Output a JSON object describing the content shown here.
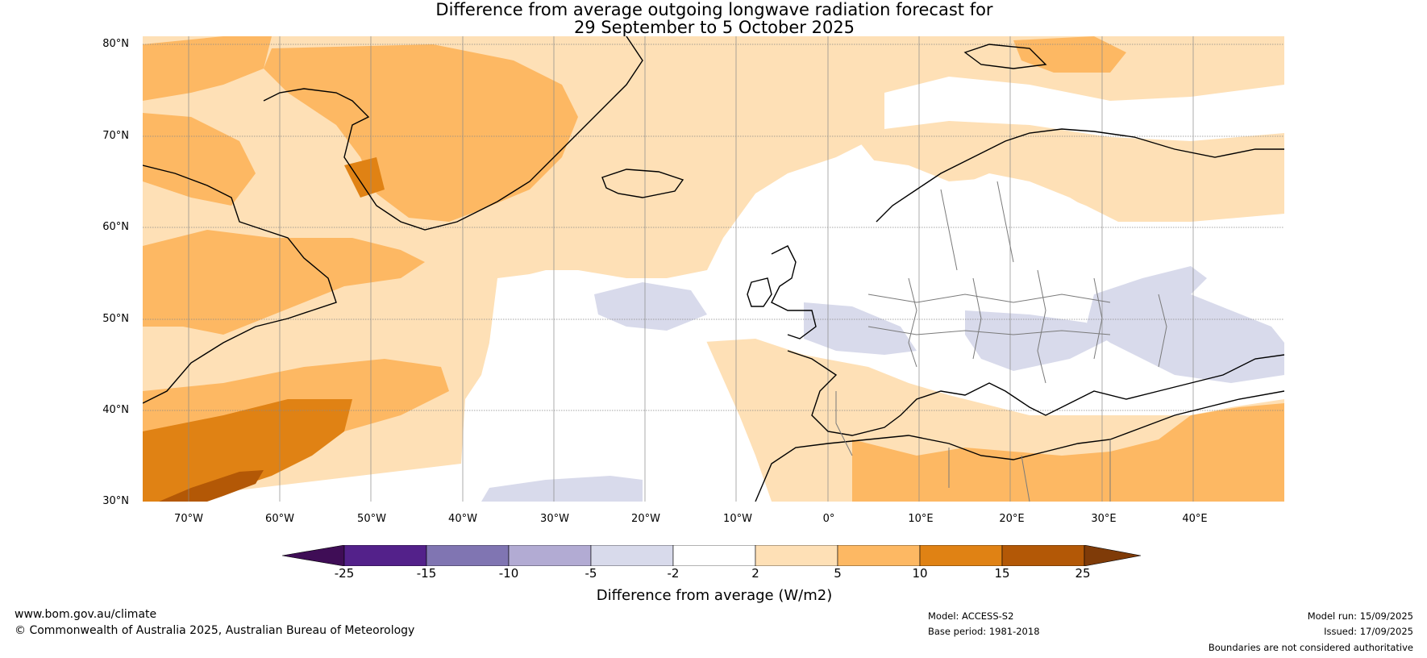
{
  "title": {
    "line1": "Difference from average outgoing longwave radiation forecast for",
    "line2": "29 September to 5 October 2025"
  },
  "map": {
    "lat_labels": [
      "80°N",
      "70°N",
      "60°N",
      "50°N",
      "40°N",
      "30°N"
    ],
    "lon_labels": [
      "70°W",
      "60°W",
      "50°W",
      "40°W",
      "30°W",
      "20°W",
      "10°W",
      "0°",
      "10°E",
      "20°E",
      "30°E",
      "40°E"
    ]
  },
  "colorbar": {
    "title": "Difference from average (W/m2)",
    "ticks": [
      "-25",
      "-15",
      "-10",
      "-5",
      "-2",
      "2",
      "5",
      "10",
      "15",
      "25"
    ],
    "colors": [
      "#3f0d56",
      "#53218a",
      "#8075b2",
      "#b2abd3",
      "#d8daeb",
      "#ffffff",
      "#fee0b6",
      "#fdb863",
      "#e08214",
      "#b35806",
      "#7f3b08"
    ]
  },
  "footer": {
    "website": "www.bom.gov.au/climate",
    "copyright": "© Commonwealth of Australia 2025, Australian Bureau of Meteorology",
    "model": "Model: ACCESS-S2",
    "base_period": "Base period: 1981-2018",
    "model_run": "Model run: 15/09/2025",
    "issued": "Issued: 17/09/2025",
    "disclaimer": "Boundaries are not considered authoritative"
  }
}
